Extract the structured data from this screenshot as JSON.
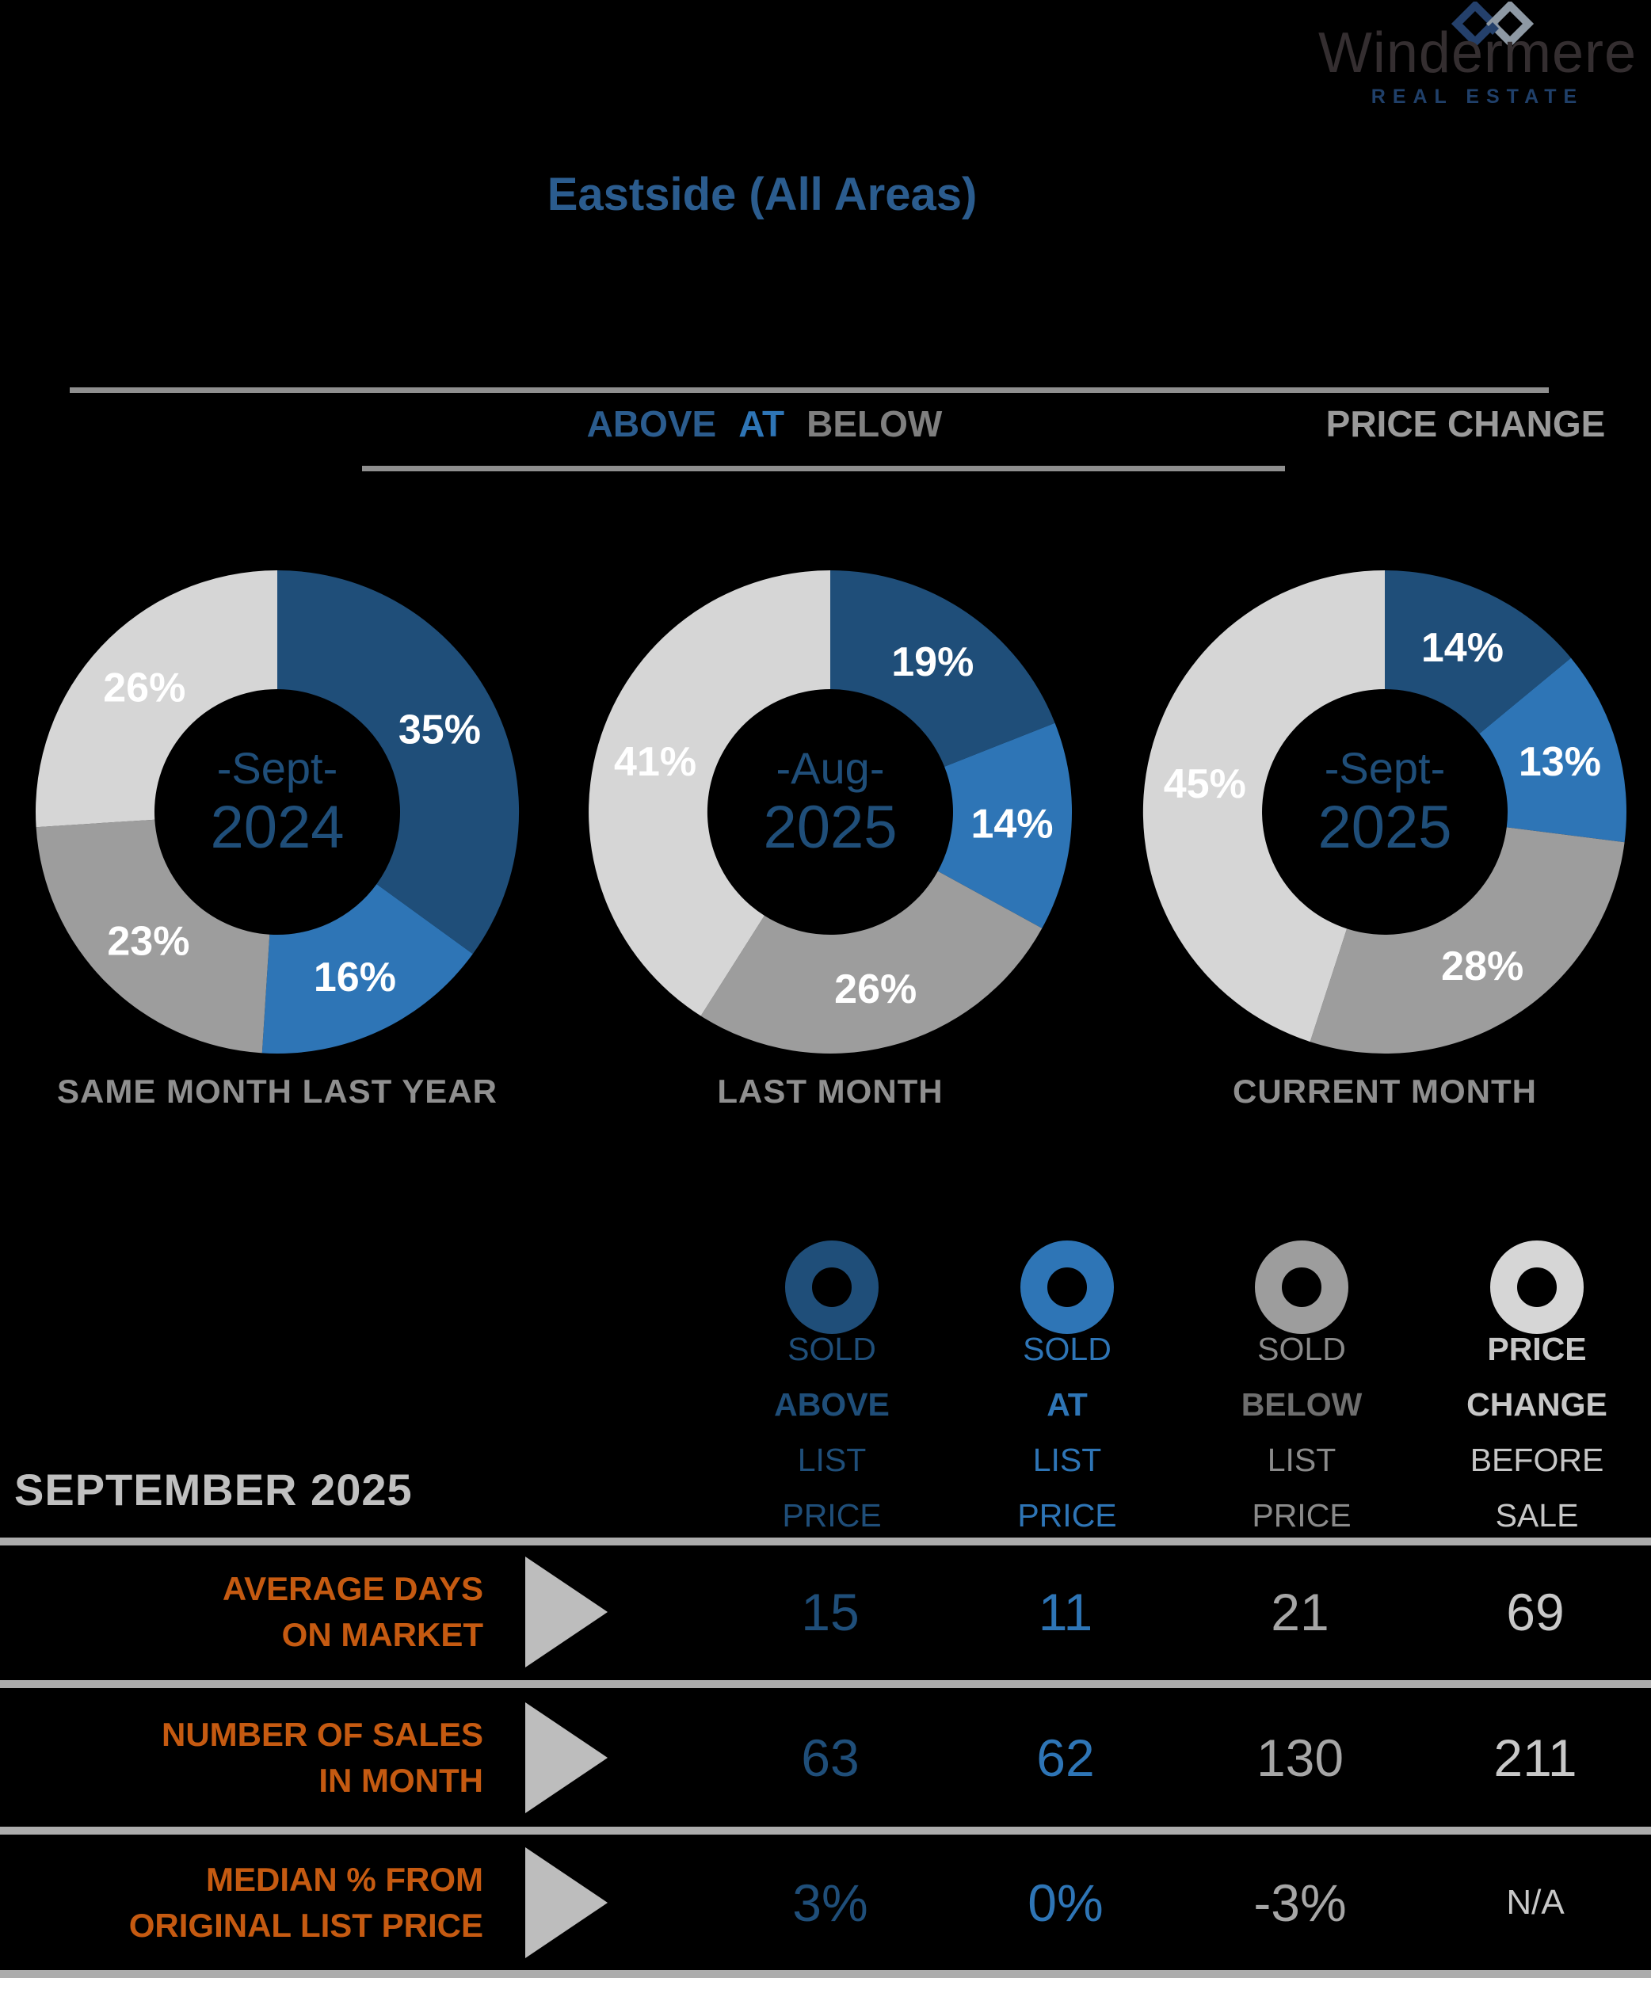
{
  "brand": {
    "name": "Windermere",
    "tagline": "REAL ESTATE"
  },
  "page": {
    "title": "Eastside (All Areas)",
    "period_label": "SEPTEMBER 2025"
  },
  "chart_header": {
    "above": "ABOVE",
    "at": "AT",
    "below": "BELOW",
    "price_change": "PRICE CHANGE"
  },
  "colors": {
    "dark_blue": "#1F4E79",
    "blue": "#2E75B6",
    "slice_gray": "#9D9D9D",
    "slice_light_gray": "#D6D6D6",
    "title_blue": "#2B5C8E",
    "line_gray": "#8F8F8F",
    "orange": "#C55A11"
  },
  "chart_data": [
    {
      "type": "pie",
      "subtype": "donut",
      "caption": "SAME MONTH LAST YEAR",
      "center": [
        "-Sept-",
        "2024"
      ],
      "slices": [
        {
          "label": "Sold above list price",
          "value": 35,
          "color": "#1F4E79"
        },
        {
          "label": "Sold at list price",
          "value": 16,
          "color": "#2E75B6"
        },
        {
          "label": "Sold below list price",
          "value": 23,
          "color": "#9D9D9D"
        },
        {
          "label": "Price change before sale",
          "value": 26,
          "color": "#D6D6D6"
        }
      ]
    },
    {
      "type": "pie",
      "subtype": "donut",
      "caption": "LAST MONTH",
      "center": [
        "-Aug-",
        "2025"
      ],
      "slices": [
        {
          "label": "Sold above list price",
          "value": 19,
          "color": "#1F4E79"
        },
        {
          "label": "Sold at list price",
          "value": 14,
          "color": "#2E75B6"
        },
        {
          "label": "Sold below list price",
          "value": 26,
          "color": "#9D9D9D"
        },
        {
          "label": "Price change before sale",
          "value": 41,
          "color": "#D6D6D6"
        }
      ]
    },
    {
      "type": "pie",
      "subtype": "donut",
      "caption": "CURRENT MONTH",
      "center": [
        "-Sept-",
        "2025"
      ],
      "slices": [
        {
          "label": "Sold above list price",
          "value": 14,
          "color": "#1F4E79"
        },
        {
          "label": "Sold at list price",
          "value": 13,
          "color": "#2E75B6"
        },
        {
          "label": "Sold below list price",
          "value": 28,
          "color": "#9D9D9D"
        },
        {
          "label": "Price change before sale",
          "value": 45,
          "color": "#D6D6D6"
        }
      ]
    }
  ],
  "legend": {
    "items": [
      {
        "lines": [
          "SOLD",
          "ABOVE",
          "LIST",
          "PRICE"
        ],
        "color": "#1F4E79",
        "bold_color": "#1F4E79",
        "icon_color": "#1F4E79"
      },
      {
        "lines": [
          "SOLD",
          "AT",
          "LIST",
          "PRICE"
        ],
        "color": "#2E75B6",
        "bold_color": "#2E75B6",
        "icon_color": "#2E75B6"
      },
      {
        "lines": [
          "SOLD",
          "BELOW",
          "LIST",
          "PRICE"
        ],
        "color": "#8A8A8A",
        "bold_color": "#6E6E6E",
        "icon_color": "#9D9D9D"
      },
      {
        "lines": [
          "PRICE",
          "CHANGE",
          "BEFORE",
          "SALE"
        ],
        "color": "#C6C6C6",
        "bold_color": "#C6C6C6",
        "icon_color": "#D6D6D6"
      }
    ]
  },
  "table": {
    "label_color": "#C55A11",
    "value_colors": [
      "#1F4E79",
      "#2E75B6",
      "#A6A6A6",
      "#C8C8C8"
    ],
    "rows": [
      {
        "label_lines": [
          "AVERAGE DAYS",
          "ON MARKET"
        ],
        "values": [
          "15",
          "11",
          "21",
          "69"
        ]
      },
      {
        "label_lines": [
          "NUMBER OF SALES",
          "IN MONTH"
        ],
        "values": [
          "63",
          "62",
          "130",
          "211"
        ]
      },
      {
        "label_lines": [
          "MEDIAN % FROM",
          "ORIGINAL LIST PRICE"
        ],
        "values": [
          "3%",
          "0%",
          "-3%",
          "N/A"
        ]
      }
    ]
  }
}
